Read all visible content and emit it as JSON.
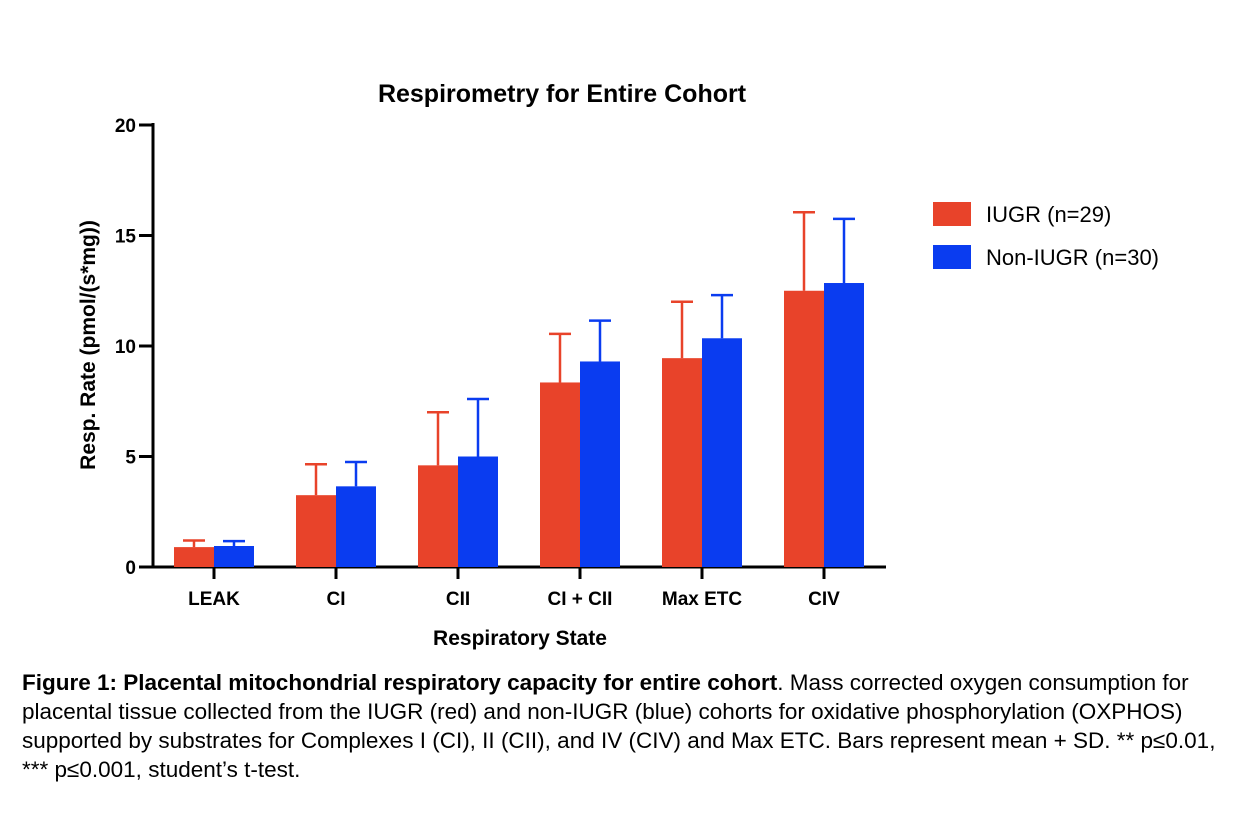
{
  "chart_data": {
    "type": "bar",
    "title": "Respirometry for Entire Cohort",
    "xlabel": "Respiratory State",
    "ylabel": "Resp. Rate (pmol/(s*mg))",
    "categories": [
      "LEAK",
      "CI",
      "CII",
      "CI + CII",
      "Max ETC",
      "CIV"
    ],
    "ylim": [
      0,
      20
    ],
    "yticks": [
      0,
      5,
      10,
      15,
      20
    ],
    "ytick_labels": [
      "0",
      "5",
      "10",
      "15",
      "20"
    ],
    "grid": false,
    "legend_position": "right",
    "error_bars": "mean + SD",
    "series": [
      {
        "name": "IUGR (n=29)",
        "color": "#E8432A",
        "values": [
          0.9,
          3.25,
          4.6,
          8.35,
          9.45,
          12.5
        ],
        "sd": [
          0.3,
          1.4,
          2.4,
          2.2,
          2.55,
          3.55
        ]
      },
      {
        "name": "Non-IUGR (n=30)",
        "color": "#0A3CF0",
        "values": [
          0.95,
          3.65,
          5.0,
          9.3,
          10.35,
          12.85
        ],
        "sd": [
          0.22,
          1.1,
          2.6,
          1.85,
          1.95,
          2.9
        ]
      }
    ]
  },
  "caption": {
    "bold": "Figure 1: Placental mitochondrial respiratory capacity for entire cohort",
    "text": ". Mass corrected oxygen consumption for placental tissue collected from the IUGR (red) and non-IUGR (blue) cohorts for oxidative phosphorylation (OXPHOS) supported by substrates for Complexes I (CI), II (CII), and IV (CIV) and Max ETC. Bars represent mean + SD. ** p≤0.01, *** p≤0.001, student’s t-test."
  }
}
